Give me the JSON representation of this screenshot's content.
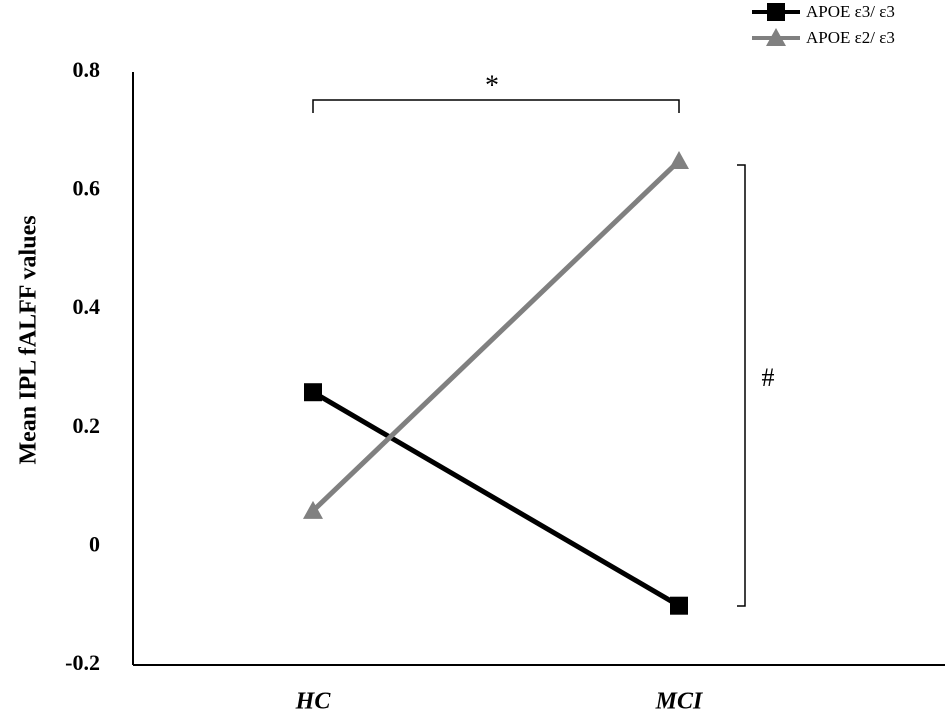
{
  "chart_data": {
    "type": "line",
    "y_label": "Mean IPL  fALFF  values",
    "categories": [
      "HC",
      "MCI"
    ],
    "series": [
      {
        "name": "APOE ε3/ ε3",
        "color": "#000000",
        "marker": "square",
        "values": [
          0.26,
          -0.1
        ]
      },
      {
        "name": "APOE ε2/ ε3",
        "color": "#808080",
        "marker": "triangle",
        "values": [
          0.06,
          0.65
        ]
      }
    ],
    "ylim": [
      -0.2,
      0.8
    ],
    "yticks": [
      -0.2,
      0,
      0.2,
      0.4,
      0.6,
      0.8
    ],
    "grid": false,
    "legend": "top-right",
    "annotations": [
      "*",
      "#"
    ]
  }
}
